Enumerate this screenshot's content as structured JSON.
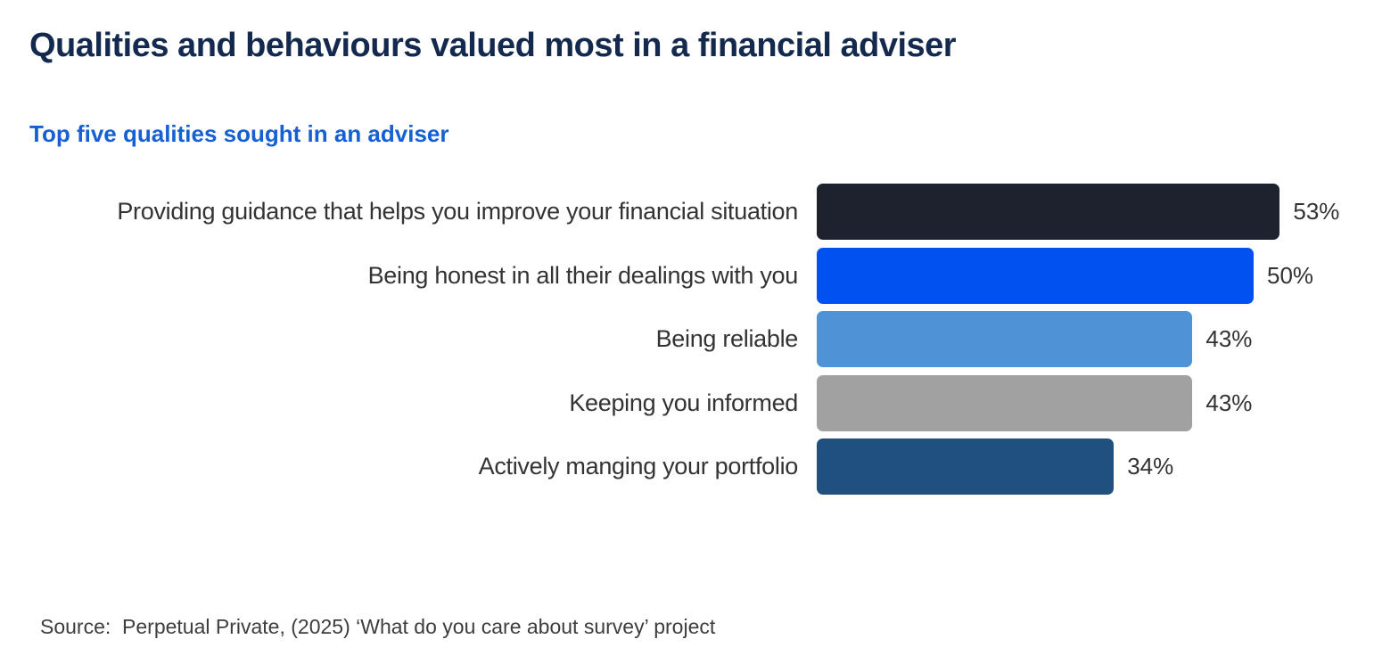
{
  "title": {
    "text": "Qualities and behaviours valued most in a financial adviser"
  },
  "subtitle": {
    "text": "Top five qualities sought in an adviser"
  },
  "source": {
    "text": "Source:  Perpetual Private, (2025) ‘What do you care about survey’ project"
  },
  "colors": {
    "title": "#14294e",
    "subtitle": "#1560d2",
    "label_text": "#333333",
    "value_text": "#333333",
    "source_text": "#3d3d3d",
    "background": "#ffffff"
  },
  "chart_data": {
    "type": "bar",
    "orientation": "horizontal",
    "title": "Qualities and behaviours valued most in a financial adviser",
    "subtitle": "Top five qualities sought in an adviser",
    "categories": [
      "Providing guidance that helps you improve your financial situation",
      "Being honest in all their dealings with you",
      "Being reliable",
      "Keeping you informed",
      "Actively manging your portfolio"
    ],
    "values": [
      53,
      50,
      43,
      43,
      34
    ],
    "value_labels": [
      "53%",
      "50%",
      "43%",
      "43%",
      "34%"
    ],
    "bar_colors": [
      "#1e222e",
      "#0051f0",
      "#4f93d6",
      "#a1a1a1",
      "#20507e"
    ],
    "xlim": [
      0,
      100
    ],
    "grid": false,
    "legend": false,
    "xlabel": "",
    "ylabel": ""
  }
}
